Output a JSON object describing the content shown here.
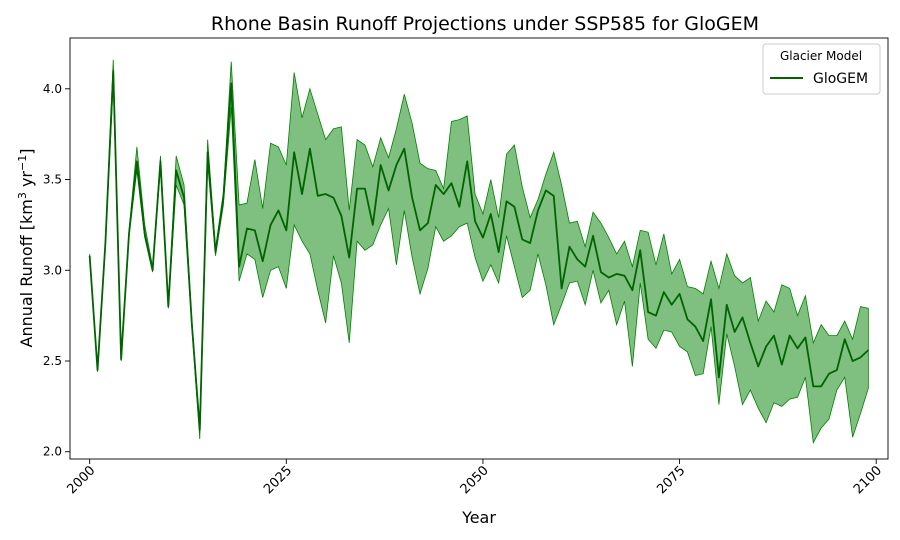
{
  "chart_data": {
    "type": "line",
    "title": "Rhone Basin Runoff Projections under SSP585 for GloGEM",
    "xlabel": "Year",
    "ylabel_prefix": "Annual Runoff [km",
    "ylabel_sup1": "3",
    "ylabel_mid": " yr",
    "ylabel_sup2": "−1",
    "ylabel_suffix": "]",
    "xlim": [
      1997.5,
      2101.5
    ],
    "ylim": [
      1.96,
      4.28
    ],
    "xticks": [
      2000,
      2025,
      2050,
      2075,
      2100
    ],
    "xtick_labels": [
      "2000",
      "2025",
      "2050",
      "2075",
      "2100"
    ],
    "yticks": [
      2.0,
      2.5,
      3.0,
      3.5,
      4.0
    ],
    "ytick_labels": [
      "2.0",
      "2.5",
      "3.0",
      "3.5",
      "4.0"
    ],
    "legend": {
      "title": "Glacier Model",
      "position": "top-right",
      "entries": [
        "GloGEM"
      ]
    },
    "colors": {
      "line": "#006400",
      "band": "#008000",
      "band_opacity": 0.5
    },
    "series": [
      {
        "name": "GloGEM",
        "x": [
          2000,
          2001,
          2002,
          2003,
          2004,
          2005,
          2006,
          2007,
          2008,
          2009,
          2010,
          2011,
          2012,
          2013,
          2014,
          2015,
          2016,
          2017,
          2018,
          2019,
          2020,
          2021,
          2022,
          2023,
          2024,
          2025,
          2026,
          2027,
          2028,
          2029,
          2030,
          2031,
          2032,
          2033,
          2034,
          2035,
          2036,
          2037,
          2038,
          2039,
          2040,
          2041,
          2042,
          2043,
          2044,
          2045,
          2046,
          2047,
          2048,
          2049,
          2050,
          2051,
          2052,
          2053,
          2054,
          2055,
          2056,
          2057,
          2058,
          2059,
          2060,
          2061,
          2062,
          2063,
          2064,
          2065,
          2066,
          2067,
          2068,
          2069,
          2070,
          2071,
          2072,
          2073,
          2074,
          2075,
          2076,
          2077,
          2078,
          2079,
          2080,
          2081,
          2082,
          2083,
          2084,
          2085,
          2086,
          2087,
          2088,
          2089,
          2090,
          2091,
          2092,
          2093,
          2094,
          2095,
          2096,
          2097,
          2098,
          2099
        ],
        "mean": [
          3.08,
          2.45,
          3.15,
          4.1,
          2.51,
          3.2,
          3.6,
          3.2,
          3.0,
          3.6,
          2.8,
          3.55,
          3.4,
          2.7,
          2.12,
          3.65,
          3.1,
          3.4,
          4.03,
          3.02,
          3.23,
          3.22,
          3.05,
          3.25,
          3.33,
          3.22,
          3.65,
          3.42,
          3.67,
          3.41,
          3.42,
          3.4,
          3.3,
          3.07,
          3.45,
          3.45,
          3.25,
          3.58,
          3.44,
          3.58,
          3.67,
          3.4,
          3.22,
          3.26,
          3.47,
          3.42,
          3.48,
          3.35,
          3.6,
          3.27,
          3.18,
          3.31,
          3.1,
          3.38,
          3.35,
          3.17,
          3.15,
          3.33,
          3.44,
          3.41,
          2.9,
          3.13,
          3.06,
          3.02,
          3.19,
          2.99,
          2.96,
          2.98,
          2.97,
          2.89,
          3.11,
          2.77,
          2.75,
          2.88,
          2.81,
          2.87,
          2.73,
          2.69,
          2.61,
          2.84,
          2.41,
          2.81,
          2.66,
          2.74,
          2.6,
          2.47,
          2.58,
          2.64,
          2.48,
          2.64,
          2.57,
          2.63,
          2.36,
          2.36,
          2.43,
          2.45,
          2.62,
          2.5,
          2.52,
          2.56
        ],
        "upper": [
          3.09,
          2.46,
          3.16,
          4.16,
          2.52,
          3.22,
          3.68,
          3.25,
          3.02,
          3.63,
          2.81,
          3.63,
          3.47,
          2.72,
          2.14,
          3.72,
          3.12,
          3.43,
          4.15,
          3.36,
          3.37,
          3.61,
          3.34,
          3.7,
          3.68,
          3.58,
          4.09,
          3.84,
          4.0,
          3.86,
          3.72,
          3.78,
          3.79,
          3.33,
          3.72,
          3.69,
          3.57,
          3.73,
          3.62,
          3.78,
          3.97,
          3.81,
          3.59,
          3.56,
          3.55,
          3.45,
          3.82,
          3.83,
          3.85,
          3.42,
          3.31,
          3.5,
          3.29,
          3.64,
          3.69,
          3.46,
          3.29,
          3.39,
          3.53,
          3.65,
          3.47,
          3.26,
          3.27,
          3.13,
          3.32,
          3.26,
          3.18,
          3.09,
          3.16,
          3.02,
          3.22,
          3.21,
          3.03,
          3.2,
          2.98,
          3.06,
          2.91,
          2.9,
          2.87,
          3.05,
          2.9,
          3.09,
          2.97,
          2.93,
          2.96,
          2.72,
          2.83,
          2.77,
          2.92,
          2.9,
          2.75,
          2.86,
          2.6,
          2.7,
          2.64,
          2.64,
          2.72,
          2.62,
          2.8,
          2.79
        ],
        "lower": [
          3.07,
          2.44,
          3.14,
          4.03,
          2.5,
          3.19,
          3.55,
          3.18,
          2.99,
          3.57,
          2.79,
          3.47,
          3.36,
          2.68,
          2.07,
          3.59,
          3.08,
          3.36,
          3.9,
          2.94,
          3.09,
          3.06,
          2.85,
          3.0,
          3.02,
          2.9,
          3.25,
          3.16,
          3.09,
          2.89,
          2.71,
          3.08,
          2.93,
          2.6,
          3.16,
          3.11,
          3.14,
          3.25,
          3.34,
          3.03,
          3.33,
          3.07,
          2.87,
          3.01,
          3.24,
          3.16,
          3.19,
          3.24,
          3.26,
          3.07,
          2.94,
          3.03,
          2.93,
          3.19,
          3.02,
          2.85,
          2.89,
          3.09,
          2.92,
          2.7,
          2.81,
          2.93,
          2.94,
          2.81,
          3.0,
          2.82,
          2.89,
          2.7,
          2.83,
          2.47,
          2.93,
          2.62,
          2.57,
          2.67,
          2.66,
          2.58,
          2.55,
          2.42,
          2.43,
          2.69,
          2.26,
          2.65,
          2.47,
          2.26,
          2.34,
          2.24,
          2.16,
          2.27,
          2.25,
          2.29,
          2.3,
          2.41,
          2.05,
          2.13,
          2.18,
          2.34,
          2.41,
          2.08,
          2.21,
          2.35
        ]
      }
    ]
  }
}
